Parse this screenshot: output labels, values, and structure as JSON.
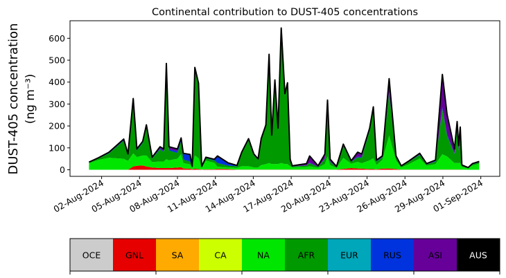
{
  "chart_data": {
    "type": "area",
    "stacked": true,
    "title": "Continental contribution to DUST-405 concentrations",
    "ylabel": [
      "DUST-405 concentration",
      "(ng m⁻³)"
    ],
    "xlabel": "",
    "ylim": [
      -30,
      680
    ],
    "yticks": [
      0,
      100,
      200,
      300,
      400,
      500,
      600
    ],
    "xticks": [
      "2024-08-02",
      "2024-08-05",
      "2024-08-08",
      "2024-08-11",
      "2024-08-14",
      "2024-08-17",
      "2024-08-20",
      "2024-08-23",
      "2024-08-26",
      "2024-08-29",
      "2024-09-01"
    ],
    "xtick_labels": [
      "02-Aug-2024",
      "05-Aug-2024",
      "08-Aug-2024",
      "11-Aug-2024",
      "14-Aug-2024",
      "17-Aug-2024",
      "20-Aug-2024",
      "23-Aug-2024",
      "26-Aug-2024",
      "29-Aug-2024",
      "01-Sep-2024"
    ],
    "xlim": [
      "2024-07-30T12:00",
      "2024-09-02T12:00"
    ],
    "grid": false,
    "x": [
      "2024-08-01T00",
      "2024-08-01T18",
      "2024-08-02T14",
      "2024-08-03T18",
      "2024-08-04T02",
      "2024-08-04T12",
      "2024-08-04T19",
      "2024-08-05T06",
      "2024-08-05T13",
      "2024-08-06T00",
      "2024-08-06T15",
      "2024-08-06T22",
      "2024-08-07T03",
      "2024-08-07T08",
      "2024-08-08T00",
      "2024-08-08T07",
      "2024-08-08T11",
      "2024-08-09T00",
      "2024-08-09T04",
      "2024-08-09T09",
      "2024-08-09T16",
      "2024-08-09T22",
      "2024-08-10T06",
      "2024-08-10T22",
      "2024-08-11T04",
      "2024-08-12T00",
      "2024-08-12T17",
      "2024-08-13T02",
      "2024-08-13T15",
      "2024-08-14T01",
      "2024-08-14T09",
      "2024-08-14T15",
      "2024-08-15T00",
      "2024-08-15T06",
      "2024-08-15T11",
      "2024-08-15T17",
      "2024-08-15T23",
      "2024-08-16T05",
      "2024-08-16T12",
      "2024-08-16T17",
      "2024-08-16T22",
      "2024-08-17T02",
      "2024-08-18T05",
      "2024-08-18T11",
      "2024-08-19T03",
      "2024-08-19T16",
      "2024-08-19T21",
      "2024-08-20T02",
      "2024-08-20T14",
      "2024-08-21T03",
      "2024-08-21T18",
      "2024-08-22T06",
      "2024-08-22T14",
      "2024-08-23T05",
      "2024-08-23T12",
      "2024-08-23T18",
      "2024-08-24T05",
      "2024-08-24T18",
      "2024-08-25T07",
      "2024-08-25T17",
      "2024-08-26T08",
      "2024-08-27T04",
      "2024-08-27T17",
      "2024-08-28T10",
      "2024-08-28T23",
      "2024-08-29T08",
      "2024-08-29T22",
      "2024-08-30T03",
      "2024-08-30T06",
      "2024-08-30T09",
      "2024-08-30T12",
      "2024-08-31T00",
      "2024-08-31T08",
      "2024-08-31T21"
    ],
    "series": [
      {
        "name": "GNL",
        "color": "#e60000",
        "values": [
          0,
          0,
          0,
          0,
          0,
          15,
          18,
          20,
          15,
          10,
          8,
          8,
          8,
          8,
          10,
          12,
          6,
          5,
          2,
          5,
          3,
          1,
          2,
          2,
          4,
          3,
          1,
          1,
          1,
          1,
          1,
          1,
          1,
          1,
          1,
          1,
          1,
          1,
          1,
          1,
          1,
          1,
          1,
          1,
          1,
          1,
          1,
          1,
          1,
          4,
          8,
          6,
          5,
          3,
          3,
          2,
          5,
          6,
          3,
          1,
          1,
          1,
          1,
          1,
          1,
          1,
          1,
          1,
          1,
          1,
          1,
          0,
          0,
          0
        ]
      },
      {
        "name": "NA",
        "color": "#00e600",
        "values": [
          30,
          45,
          55,
          50,
          40,
          60,
          40,
          45,
          50,
          25,
          30,
          30,
          40,
          35,
          40,
          60,
          25,
          20,
          8,
          60,
          50,
          8,
          40,
          30,
          10,
          8,
          8,
          15,
          15,
          10,
          10,
          20,
          25,
          30,
          25,
          25,
          25,
          30,
          25,
          25,
          15,
          10,
          12,
          15,
          8,
          25,
          60,
          20,
          8,
          50,
          20,
          30,
          25,
          40,
          50,
          20,
          40,
          150,
          40,
          10,
          25,
          50,
          18,
          25,
          70,
          60,
          30,
          30,
          30,
          30,
          12,
          7,
          20,
          28
        ]
      },
      {
        "name": "AFR",
        "color": "#009900",
        "values": [
          3,
          7,
          20,
          83,
          25,
          242,
          30,
          58,
          132,
          17,
          56,
          43,
          424,
          45,
          27,
          58,
          16,
          12,
          2,
          389,
          331,
          4,
          11,
          11,
          17,
          8,
          7,
          58,
          118,
          55,
          34,
          115,
          172,
          486,
          126,
          374,
          157,
          606,
          313,
          363,
          28,
          4,
          6,
          15,
          4,
          24,
          249,
          15,
          3,
          55,
          8,
          21,
          24,
          136,
          220,
          16,
          11,
          195,
          13,
          4,
          11,
          17,
          5,
          12,
          206,
          95,
          41,
          155,
          56,
          136,
          6,
          1,
          5,
          6
        ]
      },
      {
        "name": "RUS",
        "color": "#0033dd",
        "values": [
          0,
          0,
          2,
          3,
          3,
          3,
          3,
          3,
          3,
          2,
          3,
          4,
          5,
          5,
          8,
          10,
          25,
          30,
          2,
          10,
          8,
          1,
          2,
          3,
          30,
          12,
          3,
          3,
          3,
          3,
          3,
          3,
          3,
          5,
          3,
          5,
          3,
          5,
          4,
          4,
          2,
          1,
          1,
          2,
          1,
          2,
          3,
          2,
          1,
          3,
          2,
          3,
          3,
          3,
          4,
          2,
          2,
          5,
          2,
          1,
          1,
          2,
          1,
          2,
          8,
          6,
          3,
          4,
          3,
          3,
          1,
          1,
          1,
          1
        ]
      },
      {
        "name": "ASI",
        "color": "#660099",
        "values": [
          2,
          3,
          3,
          4,
          4,
          5,
          4,
          4,
          5,
          3,
          8,
          10,
          8,
          12,
          10,
          5,
          3,
          3,
          1,
          3,
          3,
          1,
          2,
          2,
          2,
          1,
          1,
          3,
          5,
          3,
          2,
          3,
          4,
          5,
          3,
          5,
          4,
          5,
          4,
          4,
          2,
          2,
          8,
          30,
          4,
          20,
          5,
          10,
          2,
          5,
          3,
          20,
          15,
          8,
          10,
          4,
          5,
          60,
          5,
          2,
          3,
          5,
          3,
          4,
          150,
          90,
          20,
          30,
          20,
          25,
          2,
          1,
          2,
          3
        ]
      }
    ],
    "total": [
      35,
      55,
      80,
      140,
      72,
      325,
      95,
      130,
      205,
      57,
      105,
      95,
      485,
      105,
      95,
      145,
      75,
      70,
      15,
      467,
      395,
      15,
      57,
      48,
      63,
      32,
      20,
      80,
      142,
      72,
      50,
      142,
      205,
      527,
      158,
      410,
      190,
      647,
      347,
      397,
      48,
      18,
      28,
      63,
      18,
      72,
      318,
      48,
      15,
      117,
      41,
      80,
      72,
      190,
      287,
      44,
      63,
      416,
      63,
      18,
      41,
      75,
      28,
      44,
      435,
      252,
      95,
      220,
      110,
      195,
      22,
      10,
      28,
      38
    ],
    "total_color": "#000000",
    "colorbar": {
      "categories": [
        "OCE",
        "GNL",
        "SA",
        "CA",
        "NA",
        "AFR",
        "EUR",
        "RUS",
        "ASI",
        "AUS"
      ],
      "colors": [
        "#cccccc",
        "#e60000",
        "#ffaa00",
        "#ccff00",
        "#00e600",
        "#009900",
        "#00a6b9",
        "#0033dd",
        "#660099",
        "#000000"
      ],
      "label_colors": [
        "#000000",
        "#000000",
        "#000000",
        "#000000",
        "#000000",
        "#000000",
        "#000000",
        "#000000",
        "#000000",
        "#ffffff"
      ]
    }
  }
}
